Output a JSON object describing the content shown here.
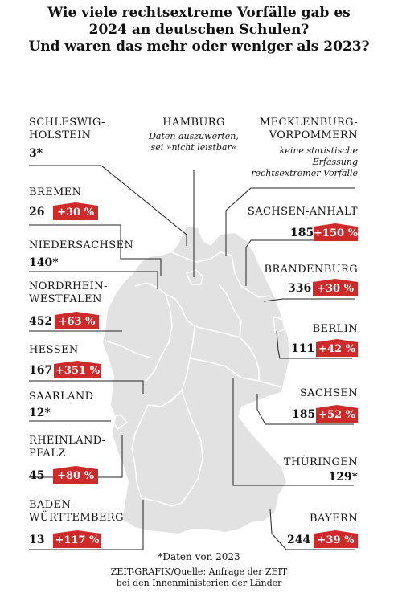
{
  "title": {
    "line1": "Wie viele rechtsextreme Vorfälle gab es",
    "line2": "2024 an deutschen Schulen?",
    "line3": "Und waren das mehr oder weniger als 2023?"
  },
  "states": {
    "schleswig_holstein": {
      "name1": "SCHLESWIG-",
      "name2": "HOLSTEIN",
      "value": "3*"
    },
    "hamburg": {
      "name": "HAMBURG",
      "note1": "Daten auszuwerten,",
      "note2": "sei »nicht leistbar«"
    },
    "mecklenburg_vorpommern": {
      "name1": "MECKLENBURG-",
      "name2": "VORPOMMERN",
      "note1": "keine statistische",
      "note2": "Erfassung",
      "note3": "rechtsextremer Vorfälle"
    },
    "bremen": {
      "name": "BREMEN",
      "value": "26",
      "change": "+30 %"
    },
    "sachsen_anhalt": {
      "name": "SACHSEN-ANHALT",
      "value": "185",
      "change": "+150 %"
    },
    "niedersachsen": {
      "name": "NIEDERSACHSEN",
      "value": "140*"
    },
    "brandenburg": {
      "name": "BRANDENBURG",
      "value": "336",
      "change": "+30 %"
    },
    "nordrhein_westfalen": {
      "name1": "NORDRHEIN-",
      "name2": "WESTFALEN",
      "value": "452",
      "change": "+63 %"
    },
    "berlin": {
      "name": "BERLIN",
      "value": "111",
      "change": "+42 %"
    },
    "hessen": {
      "name": "HESSEN",
      "value": "167",
      "change": "+351 %"
    },
    "sachsen": {
      "name": "SACHSEN",
      "value": "185",
      "change": "+52 %"
    },
    "saarland": {
      "name": "SAARLAND",
      "value": "12*"
    },
    "rheinland_pfalz": {
      "name1": "RHEINLAND-",
      "name2": "PFALZ",
      "value": "45",
      "change": "+80 %"
    },
    "thueringen": {
      "name": "THÜRINGEN",
      "value": "129*"
    },
    "baden_wuerttemberg": {
      "name1": "BADEN-",
      "name2": "WÜRTTEMBERG",
      "value": "13",
      "change": "+117 %"
    },
    "bayern": {
      "name": "BAYERN",
      "value": "244",
      "change": "+39 %"
    }
  },
  "footer": {
    "footnote": "*Daten von 2023",
    "credit1": "ZEIT-GRAFIK/Quelle: Anfrage der ZEIT",
    "credit2": "bei den Innenministerien der Länder"
  },
  "colors": {
    "badge": "#cf2a2a",
    "map_fill": "#e2e2e2",
    "border": "#ffffff",
    "leader": "#222222"
  }
}
